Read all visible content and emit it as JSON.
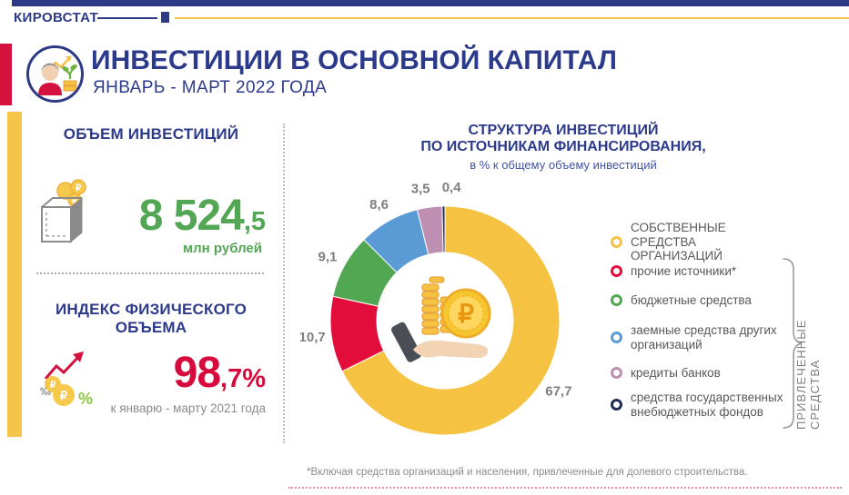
{
  "brand": {
    "name": "КИРОВСТАТ"
  },
  "header": {
    "title": "ИНВЕСТИЦИИ В ОСНОВНОЙ КАПИТАЛ",
    "subtitle": "ЯНВАРЬ - МАРТ 2022 ГОДА"
  },
  "stats": {
    "volume": {
      "heading": "ОБЪЕМ ИНВЕСТИЦИЙ",
      "value_main": "8 524",
      "value_fraction": ",5",
      "unit": "млн рублей"
    },
    "index": {
      "heading": "ИНДЕКС ФИЗИЧЕСКОГО ОБЪЕМА",
      "value_main": "98",
      "value_fraction": ",7%",
      "note": "к январю - марту 2021 года"
    }
  },
  "chart": {
    "title_line1": "СТРУКТУРА ИНВЕСТИЦИЙ",
    "title_line2": "ПО ИСТОЧНИКАМ ФИНАНСИРОВАНИЯ,",
    "title_line3": "в % к общему объему инвестиций"
  },
  "chart_data": {
    "type": "pie",
    "donut": true,
    "title": "СТРУКТУРА ИНВЕСТИЦИЙ ПО ИСТОЧНИКАМ ФИНАНСИРОВАНИЯ, в % к общему объему инвестиций",
    "start_angle_deg": 0,
    "direction": "clockwise",
    "labels": [
      "собственные средства организаций",
      "прочие источники*",
      "бюджетные средства",
      "заемные средства других организаций",
      "кредиты банков",
      "средства государственных внебюджетных фондов"
    ],
    "values": [
      67.7,
      10.7,
      9.1,
      8.6,
      3.5,
      0.4
    ],
    "display_values": [
      "67,7",
      "10,7",
      "9,1",
      "8,6",
      "3,5",
      "0,4"
    ],
    "colors": [
      "#F5C242",
      "#E20D3B",
      "#52A852",
      "#5B9BD5",
      "#BF8FB3",
      "#1F2D58"
    ],
    "value_label_color": "#7F7F7F"
  },
  "legend": {
    "items": [
      {
        "label": "СОБСТВЕННЫЕ СРЕДСТВА ОРГАНИЗАЦИЙ",
        "color": "#F5C242"
      },
      {
        "label": "прочие источники*",
        "color": "#E20D3B"
      },
      {
        "label": "бюджетные средства",
        "color": "#52A852"
      },
      {
        "label": "заемные средства других организаций",
        "color": "#5B9BD5"
      },
      {
        "label": "кредиты банков",
        "color": "#BF8FB3"
      },
      {
        "label": "средства государственных внебюджетных фондов",
        "color": "#1F2D58"
      }
    ],
    "group_label": "ПРИВЛЕЧЕННЫЕ СРЕДСТВА"
  },
  "footnote": "*Включая средства организаций и населения, привлеченные для долевого строительства.",
  "colors": {
    "navy": "#2D3A85",
    "yellow": "#F2C14B",
    "green": "#53A653",
    "red": "#D60A3C",
    "gray": "#7F7F7F"
  }
}
